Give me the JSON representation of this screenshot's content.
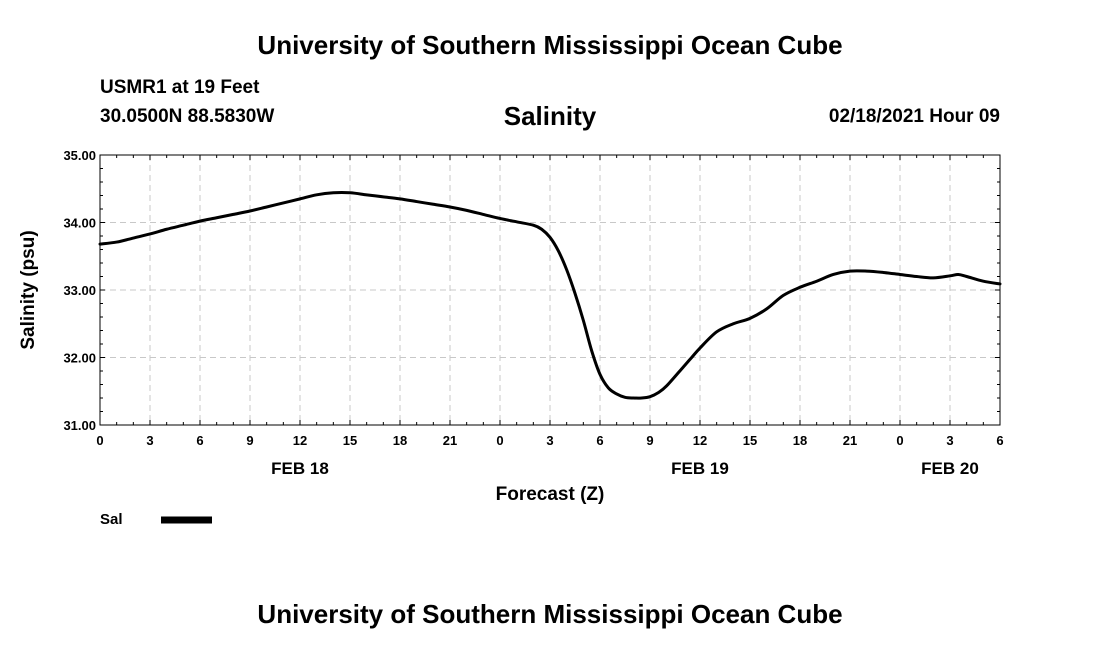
{
  "header": {
    "title": "University of Southern Mississippi Ocean Cube",
    "station": "USMR1 at 19 Feet",
    "coordinates": "30.0500N 88.5830W",
    "parameter": "Salinity",
    "datetime": "02/18/2021 Hour 09"
  },
  "footer": {
    "title": "University of Southern Mississippi Ocean Cube"
  },
  "colors": {
    "line": "#000000",
    "grid": "#c8c8c8",
    "axis": "#000000"
  },
  "chart_data": {
    "type": "line",
    "title": "Salinity",
    "xlabel": "Forecast (Z)",
    "ylabel": "Salinity (psu)",
    "xlim": [
      0,
      54
    ],
    "ylim": [
      31.0,
      35.0
    ],
    "grid": true,
    "yticks": [
      "31.00",
      "32.00",
      "33.00",
      "34.00",
      "35.00"
    ],
    "xtick_labels": [
      "0",
      "3",
      "6",
      "9",
      "12",
      "15",
      "18",
      "21",
      "0",
      "3",
      "6",
      "9",
      "12",
      "15",
      "18",
      "21",
      "0",
      "3",
      "6"
    ],
    "day_labels": [
      {
        "label": "FEB 18",
        "hour": 12
      },
      {
        "label": "FEB 19",
        "hour": 36
      },
      {
        "label": "FEB 20",
        "hour": 51
      }
    ],
    "legend": {
      "label": "Sal",
      "placement": "bottom-left"
    },
    "series": [
      {
        "name": "Sal",
        "x": [
          0,
          1,
          2,
          3,
          4,
          5,
          6,
          7,
          8,
          9,
          10,
          11,
          12,
          13,
          14,
          15,
          16,
          17,
          18,
          19,
          20,
          21,
          22,
          23,
          24,
          25,
          26,
          26.5,
          27,
          27.5,
          28,
          28.5,
          29,
          29.5,
          30,
          30.5,
          31,
          31.5,
          32,
          32.5,
          33,
          33.5,
          34,
          35,
          35.5,
          36,
          37,
          38,
          39,
          40,
          41,
          42,
          43,
          44,
          45,
          46,
          47,
          48,
          49,
          50,
          51,
          51.5,
          52,
          53,
          54
        ],
        "values": [
          33.68,
          33.71,
          33.77,
          33.83,
          33.9,
          33.96,
          34.02,
          34.07,
          34.12,
          34.17,
          34.23,
          34.29,
          34.35,
          34.41,
          34.44,
          34.44,
          34.41,
          34.38,
          34.35,
          34.31,
          34.27,
          34.23,
          34.18,
          34.12,
          34.06,
          34.01,
          33.96,
          33.9,
          33.78,
          33.58,
          33.3,
          32.95,
          32.55,
          32.1,
          31.75,
          31.55,
          31.46,
          31.41,
          31.4,
          31.4,
          31.42,
          31.48,
          31.58,
          31.86,
          32.0,
          32.14,
          32.38,
          32.5,
          32.58,
          32.72,
          32.92,
          33.04,
          33.13,
          33.23,
          33.28,
          33.28,
          33.26,
          33.23,
          33.2,
          33.18,
          33.21,
          33.23,
          33.2,
          33.13,
          33.09
        ]
      }
    ]
  }
}
